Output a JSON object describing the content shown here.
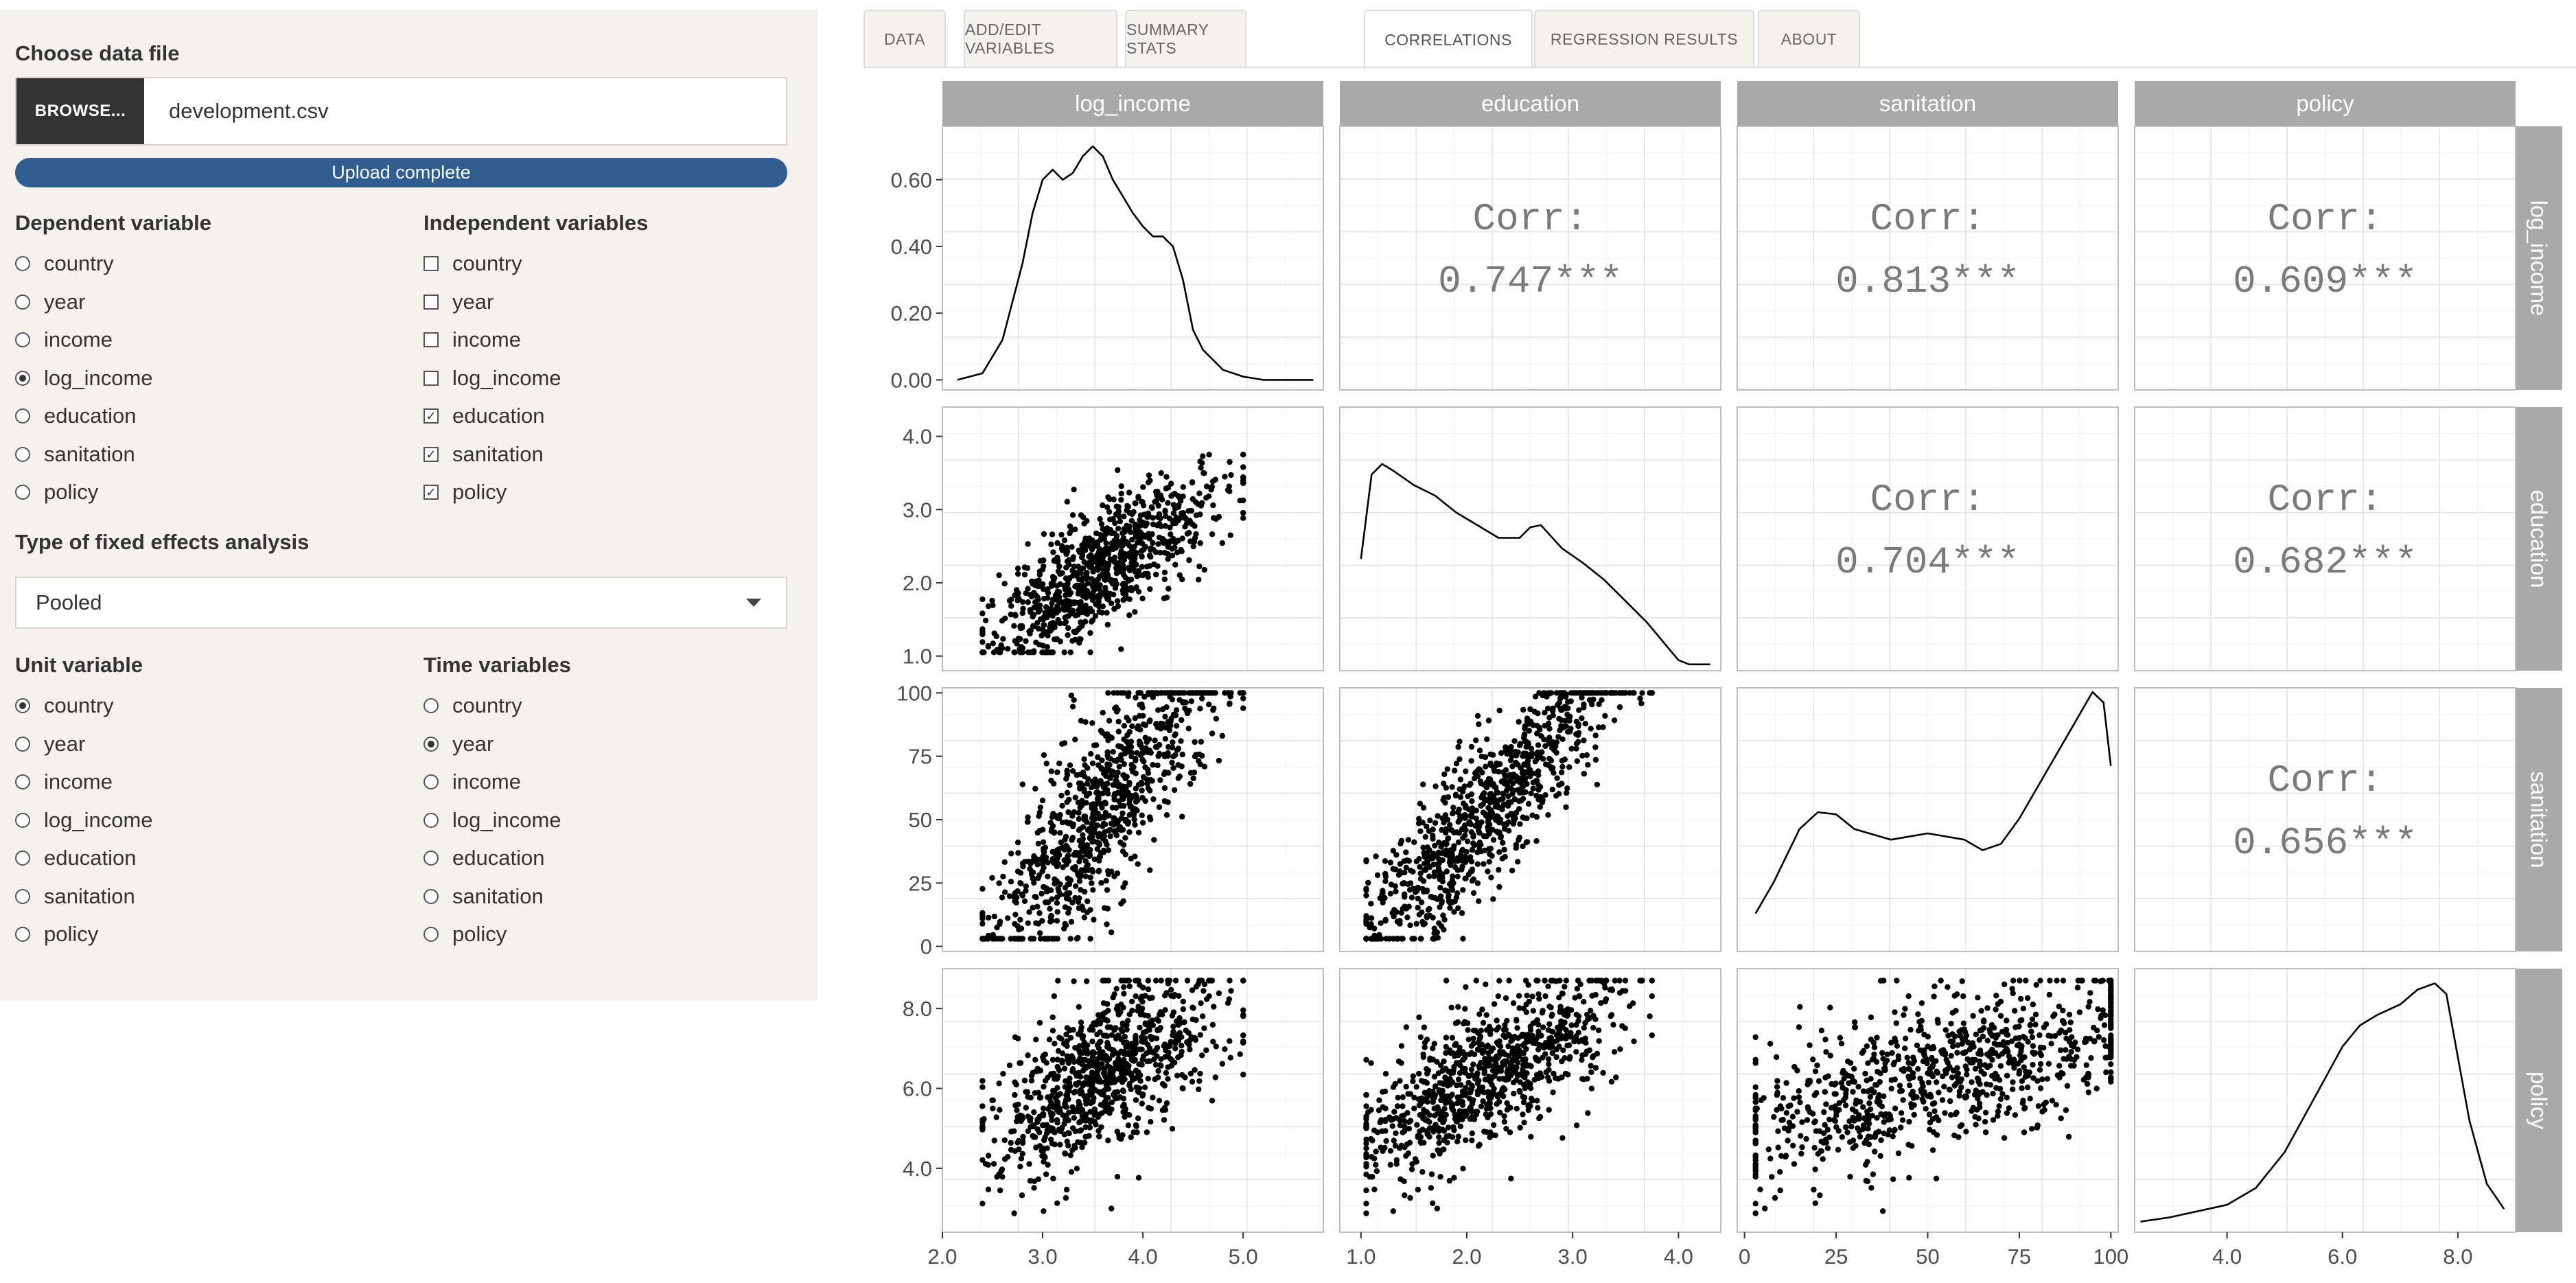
{
  "sidebar": {
    "file_label": "Choose data file",
    "browse_label": "BROWSE...",
    "file_name": "development.csv",
    "upload_status": "Upload complete",
    "dependent": {
      "label": "Dependent variable",
      "options": [
        "country",
        "year",
        "income",
        "log_income",
        "education",
        "sanitation",
        "policy"
      ],
      "selected": "log_income"
    },
    "independent": {
      "label": "Independent variables",
      "options": [
        "country",
        "year",
        "income",
        "log_income",
        "education",
        "sanitation",
        "policy"
      ],
      "checked": [
        "education",
        "sanitation",
        "policy"
      ]
    },
    "fixed_effects": {
      "label": "Type of fixed effects analysis",
      "value": "Pooled"
    },
    "unit": {
      "label": "Unit variable",
      "options": [
        "country",
        "year",
        "income",
        "log_income",
        "education",
        "sanitation",
        "policy"
      ],
      "selected": "country"
    },
    "time": {
      "label": "Time variables",
      "options": [
        "country",
        "year",
        "income",
        "log_income",
        "education",
        "sanitation",
        "policy"
      ],
      "selected": "year"
    }
  },
  "tabs": [
    {
      "label": "DATA",
      "active": false
    },
    {
      "label": "ADD/EDIT VARIABLES",
      "active": false
    },
    {
      "label": "SUMMARY STATS",
      "active": false
    },
    {
      "label": "CORRELATIONS",
      "active": true
    },
    {
      "label": "REGRESSION RESULTS",
      "active": false
    },
    {
      "label": "ABOUT",
      "active": false
    }
  ],
  "chart_data": {
    "type": "scatter",
    "variables": [
      "log_income",
      "education",
      "sanitation",
      "policy"
    ],
    "correlations": [
      {
        "row": "log_income",
        "col": "education",
        "label": "Corr:",
        "value": "0.747***"
      },
      {
        "row": "log_income",
        "col": "sanitation",
        "label": "Corr:",
        "value": "0.813***"
      },
      {
        "row": "log_income",
        "col": "policy",
        "label": "Corr:",
        "value": "0.609***"
      },
      {
        "row": "education",
        "col": "sanitation",
        "label": "Corr:",
        "value": "0.704***"
      },
      {
        "row": "education",
        "col": "policy",
        "label": "Corr:",
        "value": "0.682***"
      },
      {
        "row": "sanitation",
        "col": "policy",
        "label": "Corr:",
        "value": "0.656***"
      }
    ],
    "ranges": {
      "log_income": [
        2.0,
        5.8
      ],
      "education": [
        0.8,
        4.4
      ],
      "sanitation": [
        -2,
        102
      ],
      "policy": [
        2.4,
        9.0
      ]
    },
    "x_ticks": {
      "log_income": [
        "2.0",
        "3.0",
        "4.0",
        "5.0"
      ],
      "education": [
        "1.0",
        "2.0",
        "3.0",
        "4.0"
      ],
      "sanitation": [
        "0",
        "25",
        "50",
        "75",
        "100"
      ],
      "policy": [
        "4.0",
        "6.0",
        "8.0"
      ]
    },
    "y_ticks_density": [
      "0.00",
      "0.20",
      "0.40",
      "0.60"
    ],
    "y_ticks": {
      "education": [
        "1.0",
        "2.0",
        "3.0",
        "4.0"
      ],
      "sanitation": [
        "0",
        "25",
        "50",
        "75",
        "100"
      ],
      "policy": [
        "4.0",
        "6.0",
        "8.0"
      ]
    },
    "density_ylim": [
      -0.03,
      0.76
    ],
    "densities": {
      "log_income": {
        "x": [
          2.15,
          2.4,
          2.6,
          2.8,
          2.9,
          3.0,
          3.1,
          3.2,
          3.3,
          3.4,
          3.5,
          3.6,
          3.7,
          3.8,
          3.9,
          4.0,
          4.1,
          4.2,
          4.3,
          4.4,
          4.5,
          4.6,
          4.7,
          4.8,
          5.0,
          5.2,
          5.5,
          5.7
        ],
        "y": [
          0.0,
          0.02,
          0.12,
          0.35,
          0.5,
          0.6,
          0.63,
          0.6,
          0.62,
          0.67,
          0.7,
          0.67,
          0.6,
          0.55,
          0.5,
          0.46,
          0.43,
          0.43,
          0.4,
          0.3,
          0.15,
          0.09,
          0.06,
          0.03,
          0.01,
          0.0,
          0.0,
          0.0
        ]
      },
      "education": {
        "x": [
          1.0,
          1.1,
          1.2,
          1.3,
          1.5,
          1.7,
          1.9,
          2.1,
          2.3,
          2.5,
          2.6,
          2.7,
          2.9,
          3.1,
          3.3,
          3.5,
          3.7,
          3.9,
          4.0,
          4.1,
          4.3
        ],
        "y": [
          0.5,
          0.9,
          0.95,
          0.92,
          0.85,
          0.8,
          0.72,
          0.66,
          0.6,
          0.6,
          0.65,
          0.66,
          0.55,
          0.48,
          0.4,
          0.3,
          0.2,
          0.08,
          0.02,
          0.0,
          0.0
        ]
      },
      "sanitation": {
        "x": [
          3,
          8,
          15,
          20,
          25,
          30,
          40,
          50,
          60,
          65,
          70,
          75,
          80,
          85,
          90,
          95,
          98,
          100
        ],
        "y": [
          0.15,
          0.3,
          0.55,
          0.63,
          0.62,
          0.55,
          0.5,
          0.53,
          0.5,
          0.45,
          0.48,
          0.6,
          0.75,
          0.9,
          1.05,
          1.2,
          1.15,
          0.85
        ]
      },
      "policy": {
        "x": [
          2.5,
          3.0,
          3.5,
          4.0,
          4.5,
          5.0,
          5.5,
          6.0,
          6.3,
          6.6,
          7.0,
          7.3,
          7.6,
          7.8,
          8.0,
          8.2,
          8.5,
          8.8
        ],
        "y": [
          0.02,
          0.04,
          0.07,
          0.1,
          0.18,
          0.35,
          0.6,
          0.85,
          0.95,
          1.0,
          1.05,
          1.12,
          1.15,
          1.1,
          0.8,
          0.5,
          0.2,
          0.08
        ]
      }
    },
    "grid": true,
    "strip_fill": "#a9a9a9",
    "point_color": "#000000"
  },
  "colors": {
    "sidebar_bg": "#f5f2ed",
    "accent": "#2f5d8f",
    "browse_bg": "#333333"
  }
}
